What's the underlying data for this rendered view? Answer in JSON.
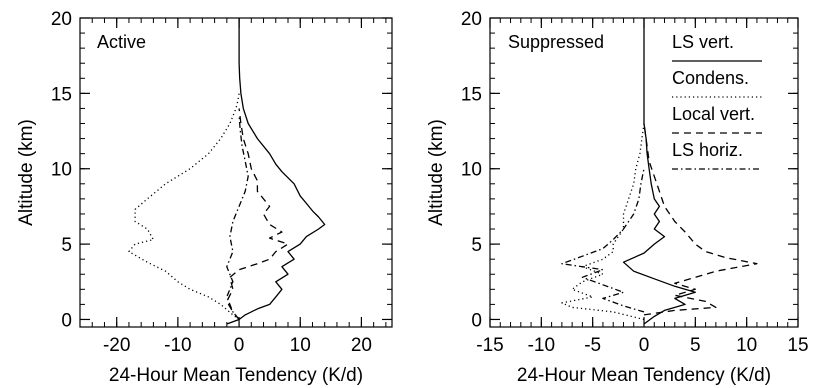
{
  "chart_data": [
    {
      "type": "line",
      "panel_label": "Active",
      "xlabel": "24-Hour Mean Tendency (K/d)",
      "ylabel": "Altitude (km)",
      "xlim": [
        -26,
        25
      ],
      "ylim": [
        -0.5,
        20
      ],
      "xticks": [
        -20,
        -10,
        0,
        10,
        20
      ],
      "xtick_labels": [
        "-20",
        "-10",
        "0",
        "10",
        "20"
      ],
      "yticks": [
        0,
        5,
        10,
        15,
        20
      ],
      "ytick_labels": [
        "0",
        "5",
        "10",
        "15",
        "20"
      ],
      "grid": false,
      "series": [
        {
          "style": "solid",
          "points": [
            [
              -2,
              -0.3
            ],
            [
              0,
              0
            ],
            [
              1,
              0.3
            ],
            [
              3,
              0.7
            ],
            [
              5,
              1
            ],
            [
              6,
              1.5
            ],
            [
              7,
              2
            ],
            [
              6,
              2.5
            ],
            [
              8,
              3
            ],
            [
              7,
              3.5
            ],
            [
              9,
              4
            ],
            [
              8,
              4.5
            ],
            [
              10,
              5
            ],
            [
              11,
              5.5
            ],
            [
              13,
              6
            ],
            [
              14,
              6.3
            ],
            [
              13,
              6.8
            ],
            [
              12,
              7.2
            ],
            [
              11,
              7.7
            ],
            [
              10,
              8.2
            ],
            [
              9,
              9
            ],
            [
              7,
              9.8
            ],
            [
              6,
              10.3
            ],
            [
              5,
              11
            ],
            [
              3,
              12
            ],
            [
              1.5,
              13
            ],
            [
              0.7,
              14
            ],
            [
              0.3,
              15
            ],
            [
              0.1,
              16
            ],
            [
              0,
              17
            ],
            [
              0,
              20
            ]
          ]
        },
        {
          "style": "dotted",
          "points": [
            [
              0,
              0
            ],
            [
              -1,
              0.3
            ],
            [
              -3,
              1
            ],
            [
              -5,
              1.5
            ],
            [
              -8,
              2
            ],
            [
              -10,
              2.5
            ],
            [
              -12,
              3.2
            ],
            [
              -15,
              3.8
            ],
            [
              -18,
              4.5
            ],
            [
              -17,
              5
            ],
            [
              -14,
              5.3
            ],
            [
              -15,
              6
            ],
            [
              -17,
              6.5
            ],
            [
              -17,
              7.3
            ],
            [
              -15,
              8
            ],
            [
              -12,
              9
            ],
            [
              -8,
              10
            ],
            [
              -5,
              11
            ],
            [
              -3,
              12
            ],
            [
              -1.5,
              13
            ],
            [
              -0.5,
              14
            ],
            [
              -0.2,
              14.5
            ],
            [
              0,
              15
            ]
          ]
        },
        {
          "style": "dashed",
          "points": [
            [
              0,
              0
            ],
            [
              -1,
              0.5
            ],
            [
              -2,
              1.2
            ],
            [
              -1,
              2
            ],
            [
              -1.5,
              2.8
            ],
            [
              0,
              3.3
            ],
            [
              3,
              3.7
            ],
            [
              5,
              4
            ],
            [
              6,
              4.5
            ],
            [
              8,
              5
            ],
            [
              5,
              5.4
            ],
            [
              7,
              5.8
            ],
            [
              5,
              6.3
            ],
            [
              4,
              7
            ],
            [
              5,
              7.5
            ],
            [
              4,
              8
            ],
            [
              3,
              8.5
            ],
            [
              3,
              9.2
            ],
            [
              2,
              10
            ],
            [
              1.5,
              11
            ],
            [
              0.7,
              12
            ],
            [
              0.3,
              13
            ],
            [
              0,
              14
            ]
          ]
        },
        {
          "style": "dashdot",
          "points": [
            [
              0,
              0
            ],
            [
              -1,
              0.5
            ],
            [
              -2,
              1.5
            ],
            [
              -1,
              2.5
            ],
            [
              -2,
              3.5
            ],
            [
              -1,
              4.5
            ],
            [
              -1.5,
              5.5
            ],
            [
              -1,
              6.5
            ],
            [
              0,
              7.5
            ],
            [
              1,
              8.5
            ],
            [
              1.5,
              9.5
            ],
            [
              1,
              10.5
            ],
            [
              0.5,
              11.5
            ],
            [
              0.2,
              12.5
            ],
            [
              0,
              13.5
            ]
          ]
        }
      ]
    },
    {
      "type": "line",
      "panel_label": "Suppressed",
      "xlabel": "24-Hour Mean Tendency (K/d)",
      "ylabel": "Altitude (km)",
      "xlim": [
        -15,
        15
      ],
      "ylim": [
        -0.5,
        20
      ],
      "xticks": [
        -15,
        -10,
        -5,
        0,
        5,
        10,
        15
      ],
      "xtick_labels": [
        "-15",
        "-10",
        "-5",
        "0",
        "5",
        "10",
        "15"
      ],
      "yticks": [
        0,
        5,
        10,
        15,
        20
      ],
      "ytick_labels": [
        "0",
        "5",
        "10",
        "15",
        "20"
      ],
      "grid": false,
      "legend_placement": "top-right",
      "legend": [
        "LS vert.",
        "Condens.",
        "Local vert.",
        "LS horiz."
      ],
      "series": [
        {
          "name": "LS vert.",
          "style": "solid",
          "points": [
            [
              0,
              -0.3
            ],
            [
              1,
              0.2
            ],
            [
              2,
              0.6
            ],
            [
              4,
              1
            ],
            [
              3,
              1.4
            ],
            [
              5,
              1.8
            ],
            [
              3,
              2.2
            ],
            [
              1,
              2.7
            ],
            [
              -1,
              3.2
            ],
            [
              -2,
              3.8
            ],
            [
              0,
              4.4
            ],
            [
              1,
              5
            ],
            [
              2,
              5.5
            ],
            [
              1,
              6
            ],
            [
              1.5,
              6.5
            ],
            [
              1,
              7
            ],
            [
              1.5,
              7.5
            ],
            [
              1,
              8
            ],
            [
              0.7,
              9
            ],
            [
              0.5,
              10
            ],
            [
              0.3,
              11
            ],
            [
              0.2,
              12
            ],
            [
              0,
              13
            ],
            [
              0,
              20
            ]
          ]
        },
        {
          "name": "Condens.",
          "style": "dotted",
          "points": [
            [
              0,
              0
            ],
            [
              -3,
              0.5
            ],
            [
              -7,
              0.8
            ],
            [
              -8,
              1.1
            ],
            [
              -5,
              1.5
            ],
            [
              -7,
              2
            ],
            [
              -6,
              2.5
            ],
            [
              -4,
              3
            ],
            [
              -6,
              3.5
            ],
            [
              -4,
              4
            ],
            [
              -3,
              4.5
            ],
            [
              -3,
              5
            ],
            [
              -2,
              6
            ],
            [
              -2,
              7
            ],
            [
              -1.5,
              8
            ],
            [
              -1,
              9
            ],
            [
              -0.8,
              10
            ],
            [
              -0.4,
              11
            ],
            [
              -0.2,
              12
            ],
            [
              0,
              13
            ]
          ]
        },
        {
          "name": "Local vert.",
          "style": "dashed",
          "points": [
            [
              0,
              0.3
            ],
            [
              3,
              0.6
            ],
            [
              7,
              0.8
            ],
            [
              6,
              1.2
            ],
            [
              3,
              1.6
            ],
            [
              5,
              2
            ],
            [
              3,
              2.4
            ],
            [
              5,
              2.8
            ],
            [
              7,
              3.2
            ],
            [
              11,
              3.7
            ],
            [
              8,
              4.1
            ],
            [
              6,
              4.5
            ],
            [
              5,
              5
            ],
            [
              4,
              5.8
            ],
            [
              3,
              6.5
            ],
            [
              2,
              7.5
            ],
            [
              1.5,
              8.5
            ],
            [
              1,
              9.5
            ],
            [
              0.5,
              10.5
            ],
            [
              0.3,
              11.5
            ],
            [
              0,
              13
            ]
          ]
        },
        {
          "name": "LS horiz.",
          "style": "dashdot",
          "points": [
            [
              0,
              0.5
            ],
            [
              -2,
              0.9
            ],
            [
              -4,
              1.4
            ],
            [
              -2,
              1.8
            ],
            [
              -4,
              2.3
            ],
            [
              -6,
              2.8
            ],
            [
              -4,
              3.3
            ],
            [
              -8,
              3.7
            ],
            [
              -6,
              4.2
            ],
            [
              -4,
              4.7
            ],
            [
              -3,
              5.3
            ],
            [
              -2,
              6
            ],
            [
              -1,
              7
            ],
            [
              -0.5,
              8
            ],
            [
              -0.3,
              9
            ],
            [
              0,
              10
            ]
          ]
        }
      ]
    }
  ]
}
